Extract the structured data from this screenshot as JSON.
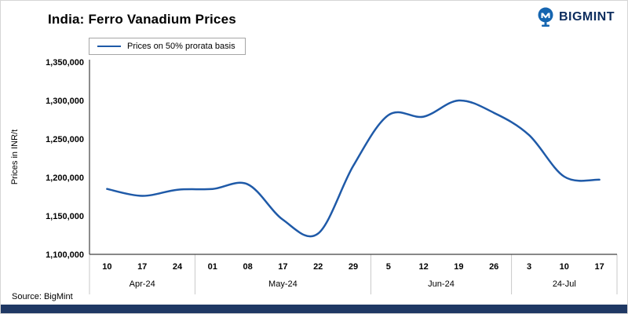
{
  "header": {
    "title": "India: Ferro Vanadium Prices",
    "logo_text": "BIGMINT"
  },
  "legend": {
    "label": "Prices on 50% prorata basis"
  },
  "source_note": "Source: BigMint",
  "colors": {
    "line": "#1f5aa8",
    "brand_navy": "#1f3864",
    "logo_blue": "#1565b0",
    "logo_text_color": "#0d2d5e",
    "axis": "#404040",
    "separator": "#c9c9c9"
  },
  "chart_data": {
    "type": "line",
    "title": "India: Ferro Vanadium Prices",
    "ylabel": "Prices in INR/t",
    "xlabel": "",
    "ylim": [
      1100000,
      1350000
    ],
    "y_ticks": [
      1100000,
      1150000,
      1200000,
      1250000,
      1300000,
      1350000
    ],
    "grid": false,
    "smooth": true,
    "legend_position": "top-left",
    "categories": [
      "10",
      "17",
      "24",
      "01",
      "08",
      "17",
      "22",
      "29",
      "5",
      "12",
      "19",
      "26",
      "3",
      "10",
      "17"
    ],
    "month_groups": [
      {
        "label": "Apr-24",
        "start": 0,
        "end": 2
      },
      {
        "label": "May-24",
        "start": 3,
        "end": 7
      },
      {
        "label": "Jun-24",
        "start": 8,
        "end": 11
      },
      {
        "label": "24-Jul",
        "start": 12,
        "end": 14
      }
    ],
    "series": [
      {
        "name": "Prices on 50% prorata basis",
        "values": [
          1185000,
          1176000,
          1184000,
          1185000,
          1191000,
          1145000,
          1127000,
          1215000,
          1281000,
          1279000,
          1300000,
          1284000,
          1255000,
          1201000,
          1197000
        ]
      }
    ]
  }
}
